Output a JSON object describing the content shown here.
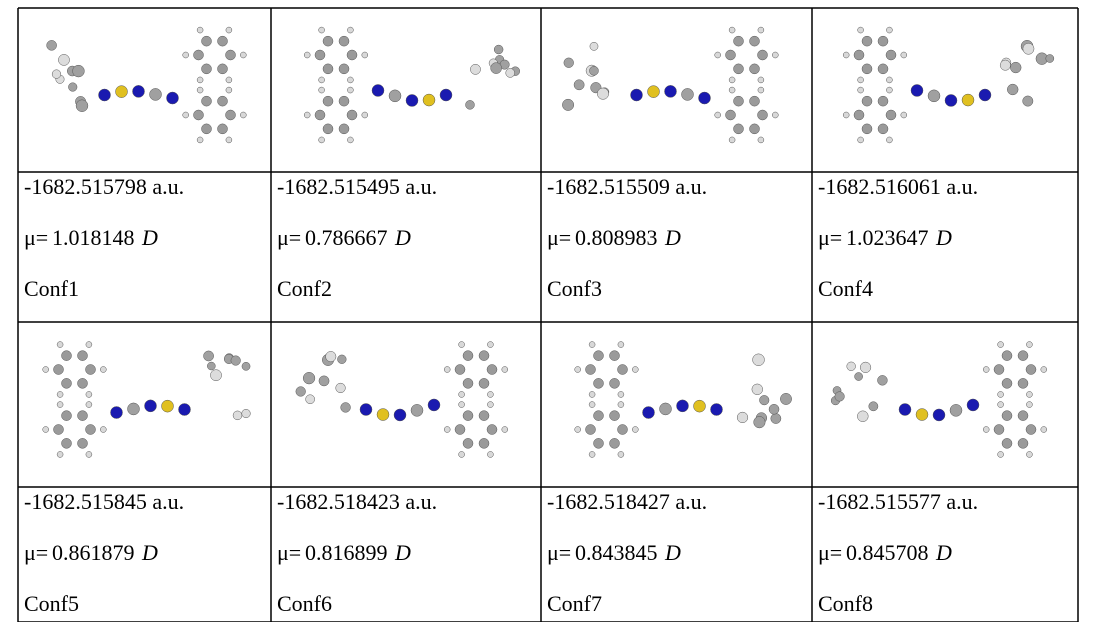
{
  "table": {
    "rows": [
      {
        "cells": [
          {
            "energy": "-1682.515798 a.u.",
            "mu": "μ=",
            "dipole": "1.018148",
            "unit": "D",
            "name": "Conf1"
          },
          {
            "energy": "-1682.515495 a.u.",
            "mu": "μ=",
            "dipole": "0.786667",
            "unit": "D",
            "name": "Conf2"
          },
          {
            "energy": "-1682.515509 a.u.",
            "mu": "μ=",
            "dipole": "0.808983",
            "unit": "D",
            "name": "Conf3"
          },
          {
            "energy": "-1682.516061 a.u.",
            "mu": "μ=",
            "dipole": "1.023647",
            "unit": "D",
            "name": "Conf4"
          }
        ]
      },
      {
        "cells": [
          {
            "energy": "-1682.515845 a.u.",
            "mu": "μ=",
            "dipole": "0.861879",
            "unit": "D",
            "name": "Conf5"
          },
          {
            "energy": "-1682.518423 a.u.",
            "mu": "μ=",
            "dipole": "0.816899",
            "unit": "D",
            "name": "Conf6"
          },
          {
            "energy": "-1682.518427 a.u.",
            "mu": "μ=",
            "dipole": "0.843845",
            "unit": "D",
            "name": "Conf7"
          },
          {
            "energy": "-1682.515577 a.u.",
            "mu": "μ=",
            "dipole": "0.845708",
            "unit": "D",
            "name": "Conf8"
          }
        ]
      }
    ]
  }
}
